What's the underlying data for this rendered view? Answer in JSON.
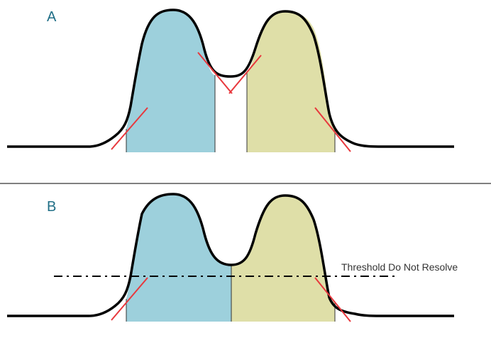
{
  "panels": [
    {
      "label": "A"
    },
    {
      "label": "B",
      "threshold_label": "Threshold Do Not Resolve"
    }
  ],
  "colors": {
    "peak_left_fill": "#9dd0dc",
    "peak_right_fill": "#dfdfa8",
    "curve": "#000000",
    "tangent": "#e8383d",
    "divider": "#333333",
    "panel_letter": "#1f6e86"
  }
}
